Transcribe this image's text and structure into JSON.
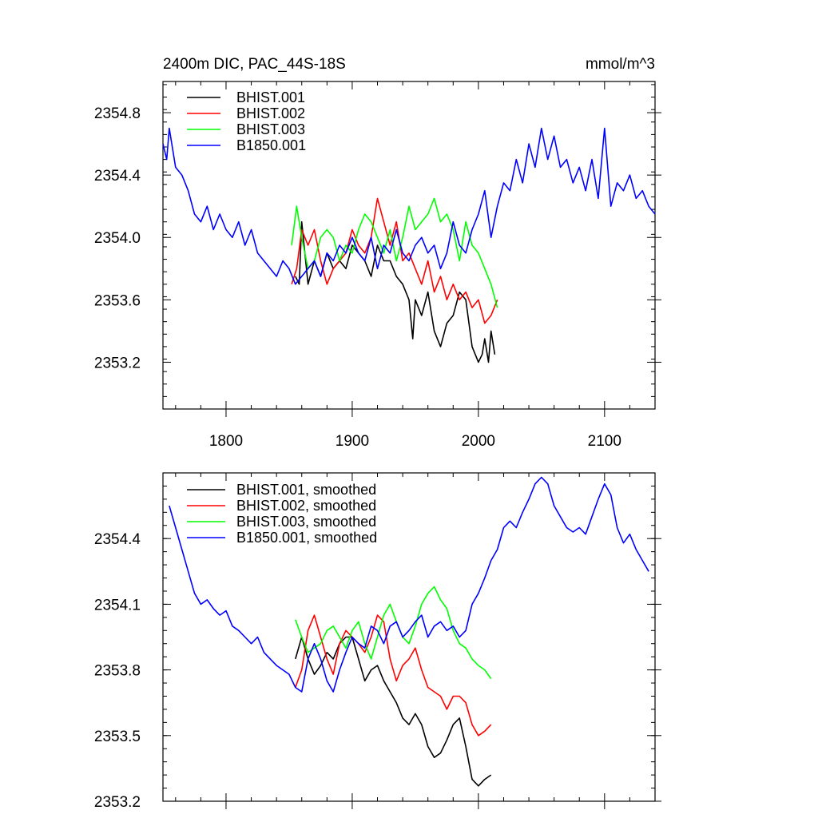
{
  "chart_data": [
    {
      "type": "line",
      "title": "2400m DIC, PAC_44S-18S",
      "units": "mmol/m^3",
      "xlim": [
        1750,
        2140
      ],
      "ylim": [
        2352.9,
        2355.0
      ],
      "xticks": [
        1800,
        1900,
        2000,
        2100
      ],
      "xtick_labels": [
        "1800",
        "1900",
        "2000",
        "2100"
      ],
      "yticks": [
        2353.2,
        2353.6,
        2354.0,
        2354.4,
        2354.8
      ],
      "ytick_labels": [
        "2353.2",
        "2353.6",
        "2354.0",
        "2354.4",
        "2354.8"
      ],
      "legend": "top-left",
      "grid": false,
      "series": [
        {
          "name": "BHIST.001",
          "color": "#000000",
          "x": [
            1855,
            1858,
            1860,
            1865,
            1870,
            1875,
            1880,
            1885,
            1890,
            1895,
            1900,
            1905,
            1910,
            1915,
            1920,
            1925,
            1930,
            1935,
            1940,
            1945,
            1948,
            1950,
            1955,
            1960,
            1965,
            1970,
            1975,
            1980,
            1985,
            1990,
            1995,
            2000,
            2003,
            2005,
            2008,
            2010,
            2013
          ],
          "y": [
            2353.75,
            2353.7,
            2354.1,
            2353.7,
            2353.85,
            2353.75,
            2353.9,
            2353.8,
            2353.85,
            2353.8,
            2353.95,
            2353.9,
            2353.85,
            2353.75,
            2353.95,
            2353.85,
            2353.85,
            2353.75,
            2353.7,
            2353.6,
            2353.35,
            2353.6,
            2353.5,
            2353.65,
            2353.4,
            2353.3,
            2353.45,
            2353.5,
            2353.65,
            2353.6,
            2353.3,
            2353.2,
            2353.25,
            2353.35,
            2353.2,
            2353.4,
            2353.25
          ]
        },
        {
          "name": "BHIST.002",
          "color": "#ff0000",
          "x": [
            1852,
            1856,
            1860,
            1865,
            1870,
            1875,
            1880,
            1885,
            1890,
            1895,
            1900,
            1905,
            1910,
            1915,
            1920,
            1925,
            1930,
            1935,
            1940,
            1945,
            1950,
            1955,
            1960,
            1965,
            1970,
            1975,
            1980,
            1985,
            1990,
            1995,
            2000,
            2005,
            2010,
            2015
          ],
          "y": [
            2353.7,
            2353.8,
            2354.05,
            2353.95,
            2354.05,
            2353.85,
            2353.7,
            2353.8,
            2353.85,
            2353.9,
            2354.05,
            2353.95,
            2353.9,
            2354.0,
            2354.25,
            2354.1,
            2353.95,
            2354.1,
            2353.85,
            2353.9,
            2353.8,
            2353.7,
            2353.85,
            2353.65,
            2353.75,
            2353.6,
            2353.7,
            2353.6,
            2353.65,
            2353.55,
            2353.6,
            2353.45,
            2353.5,
            2353.6
          ]
        },
        {
          "name": "BHIST.003",
          "color": "#00ff00",
          "x": [
            1852,
            1856,
            1860,
            1865,
            1870,
            1875,
            1880,
            1885,
            1890,
            1895,
            1900,
            1905,
            1910,
            1915,
            1920,
            1925,
            1930,
            1935,
            1940,
            1945,
            1950,
            1955,
            1960,
            1965,
            1970,
            1975,
            1980,
            1985,
            1990,
            1995,
            2000,
            2005,
            2010,
            2015
          ],
          "y": [
            2353.95,
            2354.2,
            2354.0,
            2353.8,
            2353.85,
            2354.0,
            2354.05,
            2354.0,
            2353.85,
            2353.95,
            2353.9,
            2354.05,
            2354.15,
            2354.1,
            2354.0,
            2353.9,
            2354.05,
            2353.85,
            2354.0,
            2354.2,
            2354.05,
            2354.1,
            2354.15,
            2354.25,
            2354.1,
            2354.15,
            2354.05,
            2353.85,
            2354.1,
            2353.95,
            2353.9,
            2353.8,
            2353.7,
            2353.55
          ]
        },
        {
          "name": "B1850.001",
          "color": "#0000ff",
          "x": [
            1750,
            1753,
            1755,
            1760,
            1765,
            1770,
            1775,
            1780,
            1785,
            1790,
            1795,
            1800,
            1805,
            1810,
            1815,
            1820,
            1825,
            1830,
            1835,
            1840,
            1845,
            1850,
            1855,
            1860,
            1865,
            1870,
            1875,
            1880,
            1885,
            1890,
            1895,
            1900,
            1905,
            1910,
            1915,
            1920,
            1925,
            1930,
            1935,
            1940,
            1945,
            1950,
            1955,
            1960,
            1965,
            1970,
            1975,
            1980,
            1985,
            1990,
            1995,
            2000,
            2005,
            2010,
            2015,
            2020,
            2025,
            2030,
            2035,
            2040,
            2045,
            2050,
            2055,
            2060,
            2065,
            2070,
            2075,
            2080,
            2085,
            2090,
            2095,
            2100,
            2105,
            2110,
            2115,
            2120,
            2125,
            2130,
            2135,
            2140
          ],
          "y": [
            2354.6,
            2354.5,
            2354.7,
            2354.45,
            2354.4,
            2354.3,
            2354.15,
            2354.1,
            2354.2,
            2354.05,
            2354.15,
            2354.05,
            2354.0,
            2354.1,
            2353.95,
            2354.05,
            2353.9,
            2353.85,
            2353.8,
            2353.75,
            2353.85,
            2353.8,
            2353.7,
            2353.75,
            2353.8,
            2353.85,
            2353.75,
            2353.9,
            2353.85,
            2353.95,
            2353.9,
            2354.0,
            2353.9,
            2353.85,
            2354.0,
            2353.8,
            2353.95,
            2353.9,
            2354.05,
            2353.9,
            2353.85,
            2353.95,
            2354.0,
            2353.9,
            2353.95,
            2353.8,
            2353.9,
            2354.1,
            2353.95,
            2353.9,
            2354.05,
            2354.15,
            2354.3,
            2354.0,
            2354.2,
            2354.35,
            2354.3,
            2354.5,
            2354.35,
            2354.6,
            2354.45,
            2354.7,
            2354.5,
            2354.65,
            2354.45,
            2354.5,
            2354.35,
            2354.45,
            2354.3,
            2354.5,
            2354.25,
            2354.7,
            2354.2,
            2354.35,
            2354.3,
            2354.4,
            2354.25,
            2354.3,
            2354.2,
            2354.15
          ]
        }
      ]
    },
    {
      "type": "line",
      "title": "",
      "units": "",
      "xlim": [
        1750,
        2140
      ],
      "ylim": [
        2353.2,
        2354.7
      ],
      "xticks": [
        1800,
        1900,
        2000,
        2100
      ],
      "xtick_labels": [
        "",
        "",
        "",
        ""
      ],
      "yticks": [
        2353.2,
        2353.5,
        2353.8,
        2354.1,
        2354.4
      ],
      "ytick_labels": [
        "2353.2",
        "2353.5",
        "2353.8",
        "2354.1",
        "2354.4"
      ],
      "legend": "top-left",
      "grid": false,
      "series": [
        {
          "name": "BHIST.001, smoothed",
          "color": "#000000",
          "x": [
            1855,
            1860,
            1865,
            1870,
            1875,
            1880,
            1885,
            1890,
            1895,
            1900,
            1905,
            1910,
            1915,
            1920,
            1925,
            1930,
            1935,
            1940,
            1945,
            1950,
            1955,
            1960,
            1965,
            1970,
            1975,
            1980,
            1985,
            1990,
            1995,
            2000,
            2005,
            2010
          ],
          "y": [
            2353.85,
            2353.95,
            2353.85,
            2353.78,
            2353.82,
            2353.88,
            2353.85,
            2353.92,
            2353.95,
            2353.95,
            2353.85,
            2353.75,
            2353.8,
            2353.82,
            2353.75,
            2353.7,
            2353.65,
            2353.58,
            2353.55,
            2353.6,
            2353.55,
            2353.45,
            2353.4,
            2353.42,
            2353.48,
            2353.55,
            2353.58,
            2353.45,
            2353.3,
            2353.27,
            2353.3,
            2353.32
          ]
        },
        {
          "name": "BHIST.002, smoothed",
          "color": "#ff0000",
          "x": [
            1855,
            1860,
            1865,
            1870,
            1875,
            1880,
            1885,
            1890,
            1895,
            1900,
            1905,
            1910,
            1915,
            1920,
            1925,
            1930,
            1935,
            1940,
            1945,
            1950,
            1955,
            1960,
            1965,
            1970,
            1975,
            1980,
            1985,
            1990,
            1995,
            2000,
            2005,
            2010
          ],
          "y": [
            2353.72,
            2353.8,
            2353.98,
            2354.05,
            2353.95,
            2353.85,
            2353.78,
            2353.92,
            2353.98,
            2353.95,
            2353.92,
            2353.88,
            2353.95,
            2354.05,
            2354.02,
            2353.85,
            2353.75,
            2353.82,
            2353.85,
            2353.9,
            2353.8,
            2353.72,
            2353.7,
            2353.68,
            2353.62,
            2353.68,
            2353.68,
            2353.65,
            2353.55,
            2353.5,
            2353.52,
            2353.55
          ]
        },
        {
          "name": "BHIST.003, smoothed",
          "color": "#00ff00",
          "x": [
            1855,
            1860,
            1865,
            1870,
            1875,
            1880,
            1885,
            1890,
            1895,
            1900,
            1905,
            1910,
            1915,
            1920,
            1925,
            1930,
            1935,
            1940,
            1945,
            1950,
            1955,
            1960,
            1965,
            1970,
            1975,
            1980,
            1985,
            1990,
            1995,
            2000,
            2005,
            2010
          ],
          "y": [
            2354.03,
            2353.95,
            2353.88,
            2353.9,
            2353.92,
            2353.98,
            2354.0,
            2353.95,
            2353.9,
            2353.98,
            2354.02,
            2353.92,
            2353.85,
            2353.95,
            2354.05,
            2354.1,
            2354.02,
            2353.95,
            2353.92,
            2354.0,
            2354.1,
            2354.15,
            2354.18,
            2354.12,
            2354.08,
            2353.98,
            2353.92,
            2353.9,
            2353.85,
            2353.82,
            2353.8,
            2353.76
          ]
        },
        {
          "name": "B1850.001, smoothed",
          "color": "#0000ff",
          "x": [
            1755,
            1760,
            1765,
            1770,
            1775,
            1780,
            1785,
            1790,
            1795,
            1800,
            1805,
            1810,
            1815,
            1820,
            1825,
            1830,
            1835,
            1840,
            1845,
            1850,
            1855,
            1860,
            1865,
            1870,
            1875,
            1880,
            1885,
            1890,
            1895,
            1900,
            1905,
            1910,
            1915,
            1920,
            1925,
            1930,
            1935,
            1940,
            1945,
            1950,
            1955,
            1960,
            1965,
            1970,
            1975,
            1980,
            1985,
            1990,
            1995,
            2000,
            2005,
            2010,
            2015,
            2020,
            2025,
            2030,
            2035,
            2040,
            2045,
            2050,
            2055,
            2060,
            2065,
            2070,
            2075,
            2080,
            2085,
            2090,
            2095,
            2100,
            2105,
            2110,
            2115,
            2120,
            2125,
            2130,
            2135
          ],
          "y": [
            2354.55,
            2354.45,
            2354.35,
            2354.25,
            2354.15,
            2354.1,
            2354.12,
            2354.08,
            2354.05,
            2354.07,
            2354.0,
            2353.98,
            2353.95,
            2353.92,
            2353.95,
            2353.88,
            2353.85,
            2353.82,
            2353.8,
            2353.78,
            2353.72,
            2353.7,
            2353.85,
            2353.92,
            2353.85,
            2353.75,
            2353.7,
            2353.8,
            2353.88,
            2353.95,
            2353.92,
            2353.9,
            2354.0,
            2353.98,
            2353.92,
            2354.0,
            2354.02,
            2353.95,
            2353.98,
            2354.02,
            2354.05,
            2353.95,
            2354.0,
            2354.02,
            2353.98,
            2354.0,
            2353.95,
            2353.98,
            2354.1,
            2354.15,
            2354.22,
            2354.3,
            2354.35,
            2354.45,
            2354.48,
            2354.45,
            2354.52,
            2354.58,
            2354.65,
            2354.68,
            2354.65,
            2354.55,
            2354.5,
            2354.45,
            2354.43,
            2354.45,
            2354.42,
            2354.5,
            2354.58,
            2354.65,
            2354.6,
            2354.45,
            2354.38,
            2354.42,
            2354.35,
            2354.3,
            2354.25
          ]
        }
      ]
    }
  ]
}
